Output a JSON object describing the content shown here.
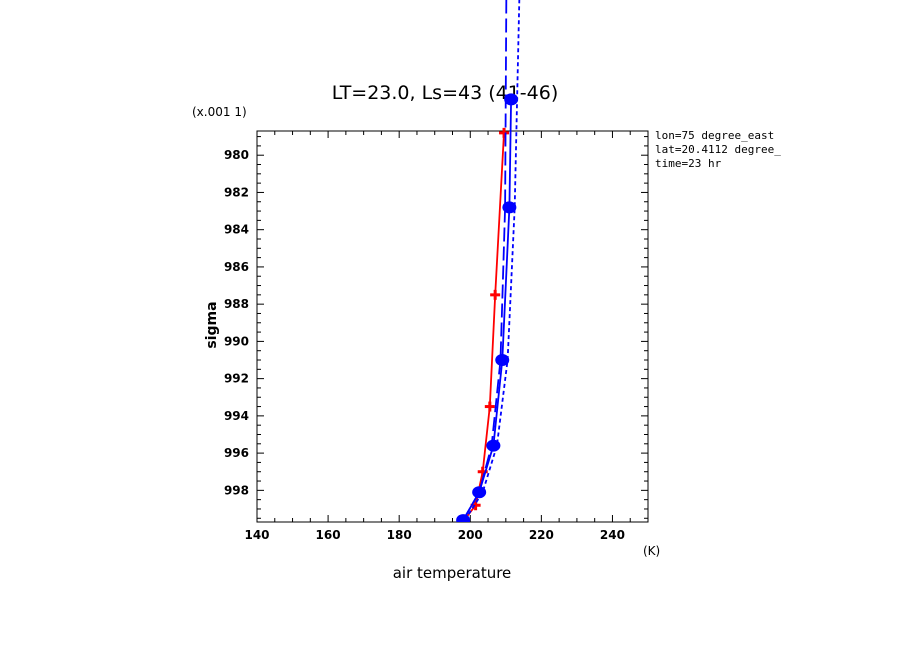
{
  "chart_data": {
    "type": "line",
    "title": "LT=23.0, Ls=43 (41-46)",
    "xlabel": "air temperature",
    "xunit": "(K)",
    "ylabel": "sigma",
    "yunit": "(x.001 1)",
    "info": [
      "lon=75 degree_east",
      "lat=20.4112 degree_",
      "time=23 hr"
    ],
    "xlim": [
      140,
      250
    ],
    "ylim": [
      978.7,
      999.7
    ],
    "y_inverted": true,
    "xticks": [
      140,
      160,
      180,
      200,
      220,
      240
    ],
    "yticks": [
      980,
      982,
      984,
      986,
      988,
      990,
      992,
      994,
      996,
      998
    ],
    "colors": {
      "red": "#ff0000",
      "blue": "#0000ff"
    },
    "series": [
      {
        "color": "#ff0000",
        "style": "solid",
        "marker": "cross",
        "points": [
          [
            197.5,
            999.8
          ],
          [
            201.5,
            998.8
          ],
          [
            203.5,
            997.0
          ],
          [
            205.5,
            993.5
          ],
          [
            207.0,
            987.5
          ],
          [
            209.5,
            978.8
          ]
        ]
      },
      {
        "color": "#0000ff",
        "style": "solid",
        "marker": "circle",
        "points": [
          [
            198.0,
            999.6
          ],
          [
            202.5,
            998.1
          ],
          [
            206.5,
            995.6
          ],
          [
            209.0,
            991.0
          ],
          [
            211.0,
            982.8
          ],
          [
            211.5,
            977.0
          ]
        ]
      },
      {
        "color": "#0000ff",
        "style": "dashed",
        "marker": "none",
        "points": [
          [
            198.5,
            999.6
          ],
          [
            203.5,
            998.1
          ],
          [
            207.5,
            995.6
          ],
          [
            210.5,
            991.0
          ],
          [
            212.5,
            982.8
          ],
          [
            214.0,
            970.0
          ]
        ]
      },
      {
        "color": "#0000ff",
        "style": "longdash",
        "marker": "none",
        "points": [
          [
            198.0,
            999.6
          ],
          [
            202.5,
            998.1
          ],
          [
            206.0,
            995.6
          ],
          [
            208.5,
            991.0
          ],
          [
            209.8,
            982.8
          ],
          [
            210.2,
            970.0
          ]
        ]
      }
    ]
  }
}
